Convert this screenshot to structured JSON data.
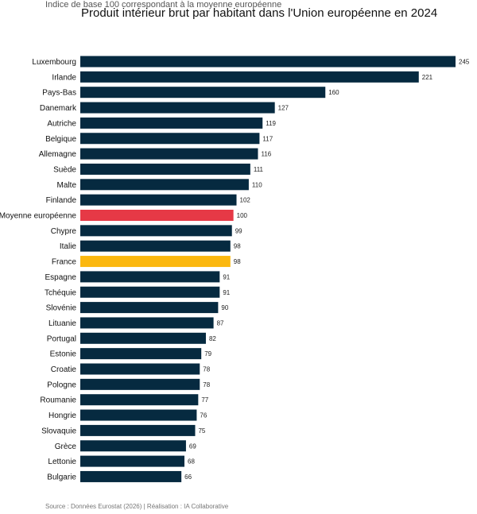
{
  "chart_data": {
    "type": "bar",
    "orientation": "horizontal",
    "subtitle": "Indice de base 100 correspondant à la moyenne européenne",
    "title": "Produit intérieur brut par habitant dans l'Union européenne en 2024",
    "categories": [
      "Luxembourg",
      "Irlande",
      "Pays-Bas",
      "Danemark",
      "Autriche",
      "Belgique",
      "Allemagne",
      "Suède",
      "Malte",
      "Finlande",
      "Moyenne européenne",
      "Chypre",
      "Italie",
      "France",
      "Espagne",
      "Tchéquie",
      "Slovénie",
      "Lituanie",
      "Portugal",
      "Estonie",
      "Croatie",
      "Pologne",
      "Roumanie",
      "Hongrie",
      "Slovaquie",
      "Grèce",
      "Lettonie",
      "Bulgarie"
    ],
    "values": [
      245,
      221,
      160,
      127,
      119,
      117,
      116,
      111,
      110,
      102,
      100,
      99,
      98,
      98,
      91,
      91,
      90,
      87,
      82,
      79,
      78,
      78,
      77,
      76,
      75,
      69,
      68,
      66
    ],
    "highlights": {
      "Moyenne européenne": "#e63946",
      "France": "#fbb80f"
    },
    "bar_color": "#062a40",
    "xlim": [
      0,
      245
    ],
    "grid": false,
    "legend": "none"
  },
  "footer": {
    "source": "Source : Données Eurostat (2026) | Réalisation : IA Collaborative"
  }
}
